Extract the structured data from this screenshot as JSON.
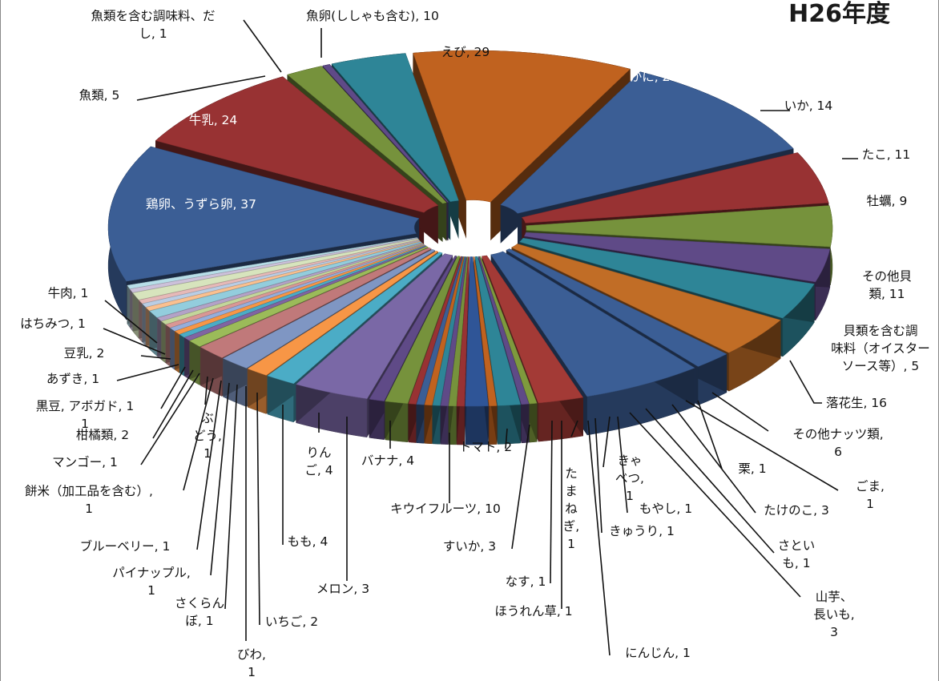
{
  "chart_data": {
    "type": "pie",
    "title": "H26年度",
    "slices": [
      {
        "label": "えび, 29",
        "name": "えび",
        "value": 29,
        "color": "#c0621f"
      },
      {
        "label": "かに, 29",
        "name": "かに",
        "value": 29,
        "color": "#3b5e95"
      },
      {
        "label": "いか, 14",
        "name": "いか",
        "value": 14,
        "color": "#983233"
      },
      {
        "label": "たこ, 11",
        "name": "たこ",
        "value": 11,
        "color": "#76923c"
      },
      {
        "label": "牡蠣, 9",
        "name": "牡蠣",
        "value": 9,
        "color": "#5f4a87"
      },
      {
        "label": "",
        "name": "",
        "value": 10,
        "color": "#2e8597"
      },
      {
        "label": "その他貝類, 11",
        "name": "その他貝類",
        "value": 11,
        "color": "#c16d26"
      },
      {
        "label": "貝類を含む調味料（オイスターソース等）, 5",
        "name": "貝類を含む調味料（オイスターソース等）",
        "value": 5,
        "color": "#3b5e95"
      },
      {
        "label": "落花生, 16",
        "name": "落花生",
        "value": 16,
        "color": "#3b5e95"
      },
      {
        "label": "その他ナッツ類, 6",
        "name": "その他ナッツ類",
        "value": 6,
        "color": "#a33a36"
      },
      {
        "label": "栗, 1",
        "name": "栗",
        "value": 1,
        "color": "#7e9a3d"
      },
      {
        "label": "ごま, 1",
        "name": "ごま",
        "value": 1,
        "color": "#5f4a87"
      },
      {
        "label": "たけのこ, 3",
        "name": "たけのこ",
        "value": 3,
        "color": "#2e8597"
      },
      {
        "label": "さといも, 1",
        "name": "さといも",
        "value": 1,
        "color": "#c0621f"
      },
      {
        "label": "山芋、長いも, 3",
        "name": "山芋、長いも",
        "value": 3,
        "color": "#2f5597"
      },
      {
        "label": "もやし, 1",
        "name": "もやし",
        "value": 1,
        "color": "#983233"
      },
      {
        "label": "きゃべつ, 1",
        "name": "きゃべつ",
        "value": 1,
        "color": "#76923c"
      },
      {
        "label": "きゅうり, 1",
        "name": "きゅうり",
        "value": 1,
        "color": "#5f4a87"
      },
      {
        "label": "にんじん, 1",
        "name": "にんじん",
        "value": 1,
        "color": "#2e8597"
      },
      {
        "label": "たまねぎ, 1",
        "name": "たまねぎ",
        "value": 1,
        "color": "#c0621f"
      },
      {
        "label": "ほうれん草, 1",
        "name": "ほうれん草",
        "value": 1,
        "color": "#3b5e95"
      },
      {
        "label": "なす, 1",
        "name": "なす",
        "value": 1,
        "color": "#983233"
      },
      {
        "label": "すいか, 3",
        "name": "すいか",
        "value": 3,
        "color": "#76923c"
      },
      {
        "label": "トマト, 2",
        "name": "トマト",
        "value": 2,
        "color": "#5f4a87"
      },
      {
        "label": "キウイフルーツ, 10",
        "name": "キウイフルーツ",
        "value": 10,
        "color": "#7a68a6"
      },
      {
        "label": "バナナ, 4",
        "name": "バナナ",
        "value": 4,
        "color": "#4bacc6"
      },
      {
        "label": "メロン, 3",
        "name": "メロン",
        "value": 3,
        "color": "#f79646"
      },
      {
        "label": "りんご, 4",
        "name": "りんご",
        "value": 4,
        "color": "#7f96c3"
      },
      {
        "label": "もも, 4",
        "name": "もも",
        "value": 4,
        "color": "#c0797a"
      },
      {
        "label": "いちご, 2",
        "name": "いちご",
        "value": 2,
        "color": "#9bbb59"
      },
      {
        "label": "びわ, 1",
        "name": "びわ",
        "value": 1,
        "color": "#8064a2"
      },
      {
        "label": "さくらんぼ, 1",
        "name": "さくらんぼ",
        "value": 1,
        "color": "#4bacc6"
      },
      {
        "label": "パイナップル, 1",
        "name": "パイナップル",
        "value": 1,
        "color": "#f79646"
      },
      {
        "label": "ブルーベリー, 1",
        "name": "ブルーベリー",
        "value": 1,
        "color": "#95aedb"
      },
      {
        "label": "餅米（加工品を含む）, 1",
        "name": "餅米（加工品を含む）",
        "value": 1,
        "color": "#d99795"
      },
      {
        "label": "ぶどう, 1",
        "name": "ぶどう",
        "value": 1,
        "color": "#c3d69b"
      },
      {
        "label": "マンゴー, 1",
        "name": "マンゴー",
        "value": 1,
        "color": "#b3a2c7"
      },
      {
        "label": "柑橘類, 2",
        "name": "柑橘類",
        "value": 2,
        "color": "#93cddd"
      },
      {
        "label": "黒豆, 1",
        "name": "黒豆",
        "value": 1,
        "color": "#fac090"
      },
      {
        "label": "アボガド, 1",
        "name": "アボガド",
        "value": 1,
        "color": "#b9cde5"
      },
      {
        "label": "あずき, 1",
        "name": "あずき",
        "value": 1,
        "color": "#e6b9b8"
      },
      {
        "label": "豆乳, 2",
        "name": "豆乳",
        "value": 2,
        "color": "#d7e4bd"
      },
      {
        "label": "はちみつ, 1",
        "name": "はちみつ",
        "value": 1,
        "color": "#ccc1da"
      },
      {
        "label": "牛肉, 1",
        "name": "牛肉",
        "value": 1,
        "color": "#b7dee8"
      },
      {
        "label": "鶏卵、うずら卵, 37",
        "name": "鶏卵、うずら卵",
        "value": 37,
        "color": "#3b5e95"
      },
      {
        "label": "牛乳, 24",
        "name": "牛乳",
        "value": 24,
        "color": "#983233"
      },
      {
        "label": "魚類, 5",
        "name": "魚類",
        "value": 5,
        "color": "#76923c"
      },
      {
        "label": "魚類を含む調味料、だし, 1",
        "name": "魚類を含む調味料、だし",
        "value": 1,
        "color": "#5f4a87"
      },
      {
        "label": "魚卵(ししゃも含む), 10",
        "name": "魚卵(ししゃも含む)",
        "value": 10,
        "color": "#2e8597"
      }
    ],
    "legend": "none",
    "labels_style": "category name, value"
  },
  "label_lines": {
    "えび": [
      "えび, 29"
    ],
    "かに": [
      "かに, 29"
    ],
    "いか": [
      "いか, 14"
    ],
    "たこ": [
      "たこ, 11"
    ],
    "牡蠣": [
      "牡蠣, 9"
    ],
    "その他貝類": [
      "その他貝",
      "類, 11"
    ],
    "貝類を含む調味料（オイスターソース等）": [
      "貝類を含む調",
      "味料（オイスター",
      "ソース等）, 5"
    ],
    "落花生": [
      "落花生, 16"
    ],
    "その他ナッツ類": [
      "その他ナッツ類,",
      "6"
    ],
    "栗": [
      "栗, 1"
    ],
    "ごま": [
      "ごま,",
      "1"
    ],
    "たけのこ": [
      "たけのこ, 3"
    ],
    "さといも": [
      "さとい",
      "も, 1"
    ],
    "山芋、長いも": [
      "山芋、",
      "長いも,",
      "3"
    ],
    "もやし": [
      "もやし, 1"
    ],
    "きゃべつ": [
      "きゃ",
      "べつ,",
      "1"
    ],
    "きゅうり": [
      "きゅうり, 1"
    ],
    "にんじん": [
      "にんじん, 1"
    ],
    "たまねぎ": [
      "た",
      "ま",
      "ね",
      "ぎ,",
      "1"
    ],
    "ほうれん草": [
      "ほうれん草, 1"
    ],
    "なす": [
      "なす, 1"
    ],
    "すいか": [
      "すいか, 3"
    ],
    "トマト": [
      "トマト, 2"
    ],
    "キウイフルーツ": [
      "キウイフルーツ, 10"
    ],
    "バナナ": [
      "バナナ, 4"
    ],
    "メロン": [
      "メロン, 3"
    ],
    "りんご": [
      "りん",
      "ご, 4"
    ],
    "もも": [
      "もも, 4"
    ],
    "いちご": [
      "いちご, 2"
    ],
    "びわ": [
      "びわ,",
      "1"
    ],
    "さくらんぼ": [
      "さくらん",
      "ぼ, 1"
    ],
    "パイナップル": [
      "パイナップル,",
      "1"
    ],
    "ブルーベリー": [
      "ブルーベリー, 1"
    ],
    "餅米（加工品を含む）": [
      "餅米（加工品を含む）,",
      "1"
    ],
    "ぶどう": [
      "ぶ",
      "どう,",
      "1"
    ],
    "マンゴー": [
      "マンゴー, 1"
    ],
    "柑橘類": [
      "柑橘類, 2"
    ],
    "黒豆": [
      "黒豆, アボガド, 1",
      "1"
    ],
    "アボガド": [],
    "あずき": [
      "あずき, 1"
    ],
    "豆乳": [
      "豆乳, 2"
    ],
    "はちみつ": [
      "はちみつ, 1"
    ],
    "牛肉": [
      "牛肉, 1"
    ],
    "鶏卵、うずら卵": [
      "鶏卵、うずら卵, 37"
    ],
    "牛乳": [
      "牛乳, 24"
    ],
    "魚類": [
      "魚類, 5"
    ],
    "魚類を含む調味料、だし": [
      "魚類を含む調味料、だ",
      "し, 1"
    ],
    "魚卵(ししゃも含む)": [
      "魚卵(ししゃも含む), 10"
    ]
  }
}
